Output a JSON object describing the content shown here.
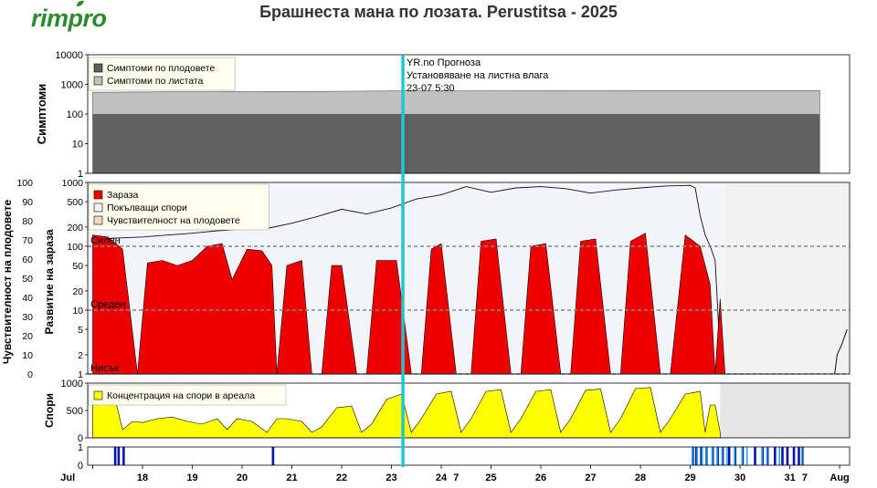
{
  "brand": {
    "logo_text": "rimpro",
    "color": "#2f8a2e"
  },
  "title": "Брашнеста мана по лозата.  Perustitsa - 2025",
  "now_line": {
    "label": "23-07 5:30",
    "color": "#1ec8d2",
    "annotation": [
      "YR.no Прогноза",
      "Установяване на листна влага",
      "23-07 5:30"
    ]
  },
  "chart_data": [
    {
      "type": "area",
      "panel": "symptoms",
      "ylabel": "Симптоми",
      "yscale": "log",
      "ylim": [
        1,
        10000
      ],
      "yticks": [
        "10000",
        "1000",
        "100",
        "10",
        "1"
      ],
      "grid": false,
      "legend_position": "top-left",
      "legend": [
        {
          "name": "Симптоми по плодовете",
          "color": "#606060"
        },
        {
          "name": "Симптоми по листата",
          "color": "#c0c0c0"
        }
      ],
      "series": [
        {
          "name": "Симптоми по плодовете",
          "color": "#606060",
          "x": [
            17.0,
            31.6
          ],
          "y": [
            100,
            100
          ]
        },
        {
          "name": "Симптоми по листата",
          "color": "#c0c0c0",
          "x": [
            17.0,
            18.5,
            20.3,
            21.6,
            23.0,
            24.5,
            26.5,
            28.5,
            29.6,
            30.0,
            31.6
          ],
          "y": [
            540,
            560,
            570,
            580,
            600,
            610,
            615,
            620,
            620,
            620,
            620
          ]
        }
      ]
    },
    {
      "type": "area",
      "panel": "infection",
      "ylabel_left": "Чувствителност на плодовете",
      "ylabel": "Развитие на зараза",
      "yscale": "log",
      "ylim": [
        1,
        1000
      ],
      "yticks_outer": [
        "100",
        "90",
        "80",
        "70",
        "60",
        "50",
        "40",
        "30",
        "20",
        "10",
        "0"
      ],
      "yticks_inner": [
        "1000",
        "500",
        "200",
        "100",
        "50",
        "20",
        "10",
        "5",
        "2",
        "1"
      ],
      "thresholds": [
        {
          "label": "Силен",
          "value": 100
        },
        {
          "label": "Среден",
          "value": 10
        },
        {
          "label": "Нисък",
          "value": 1
        }
      ],
      "legend_position": "top-left",
      "legend": [
        {
          "name": "Зараза",
          "color": "#ee0000"
        },
        {
          "name": "Покълващи спори",
          "color": "#f3f3fa"
        },
        {
          "name": "Чувствителност на плодовете",
          "color": "#f3d9c9"
        }
      ],
      "series": [
        {
          "name": "Покълващи спори",
          "color": "#f3f3fa",
          "x": [
            17.0,
            17.5,
            18.0,
            18.5,
            19.0,
            19.5,
            20.0,
            20.5,
            21.0,
            21.5,
            22.0,
            22.5,
            23.0,
            23.5,
            24.0,
            24.5,
            25.0,
            25.5,
            26.0,
            26.5,
            27.0,
            27.5,
            28.0,
            28.5,
            29.0,
            29.1,
            29.2,
            29.3,
            29.4,
            29.5,
            29.6,
            29.7,
            30.0,
            30.5,
            31.0,
            31.6
          ],
          "y": [
            130,
            135,
            140,
            150,
            160,
            175,
            185,
            190,
            230,
            290,
            380,
            320,
            400,
            550,
            640,
            860,
            700,
            820,
            860,
            800,
            680,
            760,
            820,
            880,
            900,
            820,
            300,
            150,
            100,
            60,
            2,
            1,
            1,
            1,
            1,
            1
          ]
        },
        {
          "name": "Зараза",
          "color": "#ee0000",
          "x": [
            17.0,
            17.3,
            17.6,
            17.9,
            18.1,
            18.4,
            18.7,
            19.0,
            19.3,
            19.6,
            19.8,
            20.1,
            20.4,
            20.6,
            20.7,
            20.9,
            21.2,
            21.4,
            21.6,
            21.8,
            22.0,
            22.3,
            22.5,
            22.7,
            22.8,
            23.1,
            23.4,
            23.6,
            23.8,
            24.0,
            24.3,
            24.6,
            24.8,
            25.1,
            25.4,
            25.6,
            25.8,
            26.1,
            26.4,
            26.6,
            26.8,
            27.1,
            27.4,
            27.6,
            27.8,
            28.1,
            28.4,
            28.6,
            28.9,
            29.2,
            29.4,
            29.5,
            29.6,
            29.7
          ],
          "y": [
            150,
            140,
            90,
            1,
            55,
            60,
            50,
            60,
            100,
            110,
            30,
            90,
            85,
            50,
            1,
            50,
            60,
            1,
            1,
            50,
            50,
            1,
            1,
            60,
            60,
            60,
            1,
            1,
            90,
            110,
            1,
            1,
            120,
            130,
            1,
            1,
            100,
            110,
            1,
            1,
            120,
            130,
            1,
            1,
            120,
            160,
            1,
            1,
            150,
            100,
            25,
            1,
            15,
            1
          ]
        }
      ]
    },
    {
      "type": "area",
      "panel": "spores",
      "ylabel": "Спори",
      "ylim": [
        0,
        1000
      ],
      "yticks": [
        "1000",
        "500",
        "0"
      ],
      "legend_position": "top-left",
      "legend": [
        {
          "name": "Концентрация на спори в ареала",
          "color": "#ffff00"
        }
      ],
      "series": [
        {
          "name": "Концентрация на спори в ареала",
          "color": "#ffff00",
          "x": [
            17.0,
            17.4,
            17.6,
            17.8,
            18.0,
            18.3,
            18.6,
            18.9,
            19.2,
            19.5,
            19.7,
            19.9,
            20.2,
            20.5,
            20.7,
            20.9,
            21.2,
            21.4,
            21.6,
            21.9,
            22.2,
            22.4,
            22.6,
            22.9,
            23.2,
            23.4,
            23.6,
            23.9,
            24.2,
            24.4,
            24.6,
            24.9,
            25.2,
            25.4,
            25.6,
            25.9,
            26.2,
            26.4,
            26.6,
            26.9,
            27.2,
            27.4,
            27.6,
            27.9,
            28.2,
            28.4,
            28.6,
            28.9,
            29.2,
            29.3,
            29.4,
            29.5,
            29.6
          ],
          "y": [
            950,
            900,
            150,
            300,
            280,
            350,
            380,
            300,
            250,
            350,
            150,
            350,
            300,
            100,
            350,
            350,
            300,
            100,
            200,
            550,
            580,
            100,
            250,
            700,
            800,
            100,
            350,
            800,
            850,
            100,
            350,
            850,
            880,
            100,
            350,
            850,
            880,
            100,
            350,
            870,
            890,
            100,
            350,
            900,
            920,
            100,
            350,
            800,
            850,
            100,
            600,
            600,
            100
          ]
        }
      ]
    },
    {
      "type": "bar",
      "panel": "wetness",
      "ylim": [
        0,
        1
      ],
      "yticks": [
        "1",
        "0"
      ],
      "xlabels": [
        {
          "x": 16.5,
          "label": "Jul"
        },
        {
          "x": 18,
          "label": "18"
        },
        {
          "x": 19,
          "label": "19"
        },
        {
          "x": 20,
          "label": "20"
        },
        {
          "x": 21,
          "label": "21"
        },
        {
          "x": 22,
          "label": "22"
        },
        {
          "x": 23,
          "label": "23"
        },
        {
          "x": 24,
          "label": "24"
        },
        {
          "x": 24.3,
          "label": "7"
        },
        {
          "x": 25,
          "label": "25"
        },
        {
          "x": 26,
          "label": "26"
        },
        {
          "x": 27,
          "label": "27"
        },
        {
          "x": 28,
          "label": "28"
        },
        {
          "x": 29,
          "label": "29"
        },
        {
          "x": 30,
          "label": "30"
        },
        {
          "x": 31,
          "label": "31"
        },
        {
          "x": 31.3,
          "label": "7"
        },
        {
          "x": 32,
          "label": "Aug"
        }
      ],
      "bars_dark": [
        17.45,
        17.52,
        17.62,
        20.62,
        29.05,
        29.12,
        29.22,
        29.33,
        29.45,
        29.55,
        29.65,
        29.78,
        29.9,
        30.05,
        30.3,
        30.45,
        30.55,
        30.7,
        30.85,
        30.95,
        31.08,
        31.18,
        31.25
      ],
      "bars_light": [
        29.0,
        29.1,
        29.2,
        29.3,
        29.4,
        29.5,
        29.6,
        29.7,
        29.85,
        30.0,
        30.1,
        30.4,
        30.5,
        30.75,
        31.2
      ],
      "colors": {
        "dark": "#0a12a8",
        "light": "#2aa8e8"
      }
    }
  ]
}
